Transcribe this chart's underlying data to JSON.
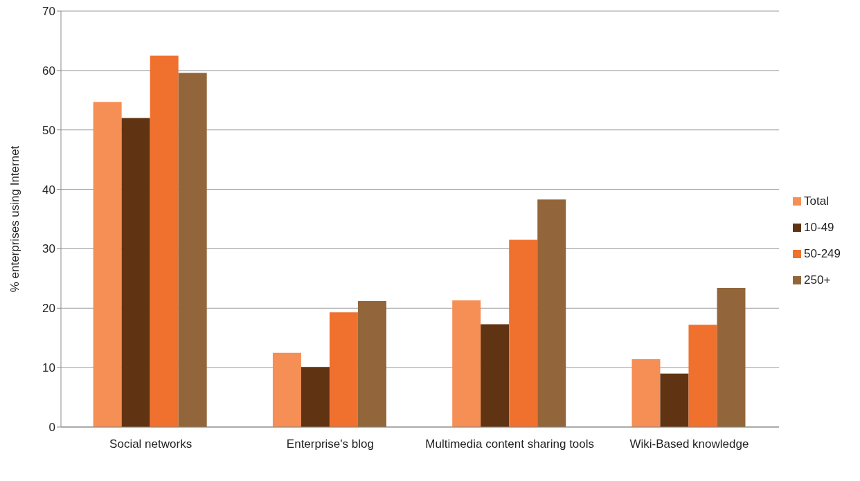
{
  "chart_data": {
    "type": "bar",
    "ylabel": "% enterprises using Internet",
    "categories": [
      "Social networks",
      "Enterprise's blog",
      "Multimedia content sharing tools",
      "Wiki-Based knowledge"
    ],
    "series": [
      {
        "name": "Total",
        "color": "#f58f55",
        "values": [
          54.7,
          12.5,
          21.3,
          11.4
        ]
      },
      {
        "name": "10-49",
        "color": "#603312",
        "values": [
          52.0,
          10.1,
          17.3,
          9.0
        ]
      },
      {
        "name": "50-249",
        "color": "#f0702e",
        "values": [
          62.5,
          19.3,
          31.5,
          17.2
        ]
      },
      {
        "name": "250+",
        "color": "#92663a",
        "values": [
          59.6,
          21.2,
          38.3,
          23.4
        ]
      }
    ],
    "ylim": [
      0,
      70
    ],
    "yticks": [
      0,
      10,
      20,
      30,
      40,
      50,
      60,
      70
    ],
    "grid": "y",
    "legend": "right"
  }
}
